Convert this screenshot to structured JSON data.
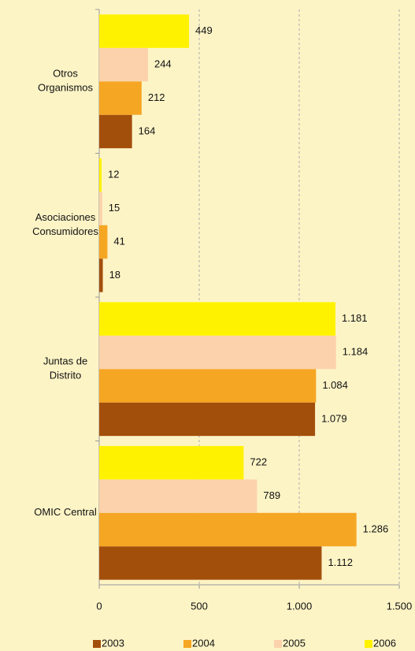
{
  "chart_data": {
    "type": "hbar",
    "categories": [
      "Otros\nOrganismos",
      "Asociaciones\nConsumidores",
      "Juntas de\nDistrito",
      "OMIC Central"
    ],
    "series": [
      {
        "name": "2003",
        "color": "#a34f0c",
        "values": [
          164,
          18,
          1079,
          1112
        ],
        "value_labels": [
          "164",
          "18",
          "1.079",
          "1.112"
        ]
      },
      {
        "name": "2004",
        "color": "#f5a623",
        "values": [
          212,
          41,
          1084,
          1286
        ],
        "value_labels": [
          "212",
          "41",
          "1.084",
          "1.286"
        ]
      },
      {
        "name": "2005",
        "color": "#fbd2ab",
        "values": [
          244,
          15,
          1184,
          789
        ],
        "value_labels": [
          "244",
          "15",
          "1.184",
          "789"
        ]
      },
      {
        "name": "2006",
        "color": "#fff200",
        "values": [
          449,
          12,
          1181,
          722
        ],
        "value_labels": [
          "449",
          "12",
          "1.181",
          "722"
        ]
      }
    ],
    "xlim": [
      0,
      1500
    ],
    "xticks": [
      0,
      500,
      {
        "value": 1000,
        "label": "1.000"
      },
      {
        "value": 1500,
        "label": "1.500"
      }
    ],
    "grid": true,
    "legend": "bottom"
  }
}
